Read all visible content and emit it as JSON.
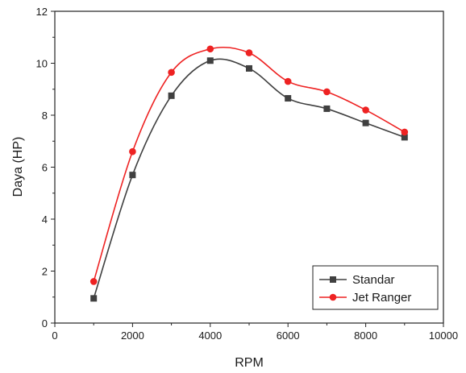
{
  "chart_data": {
    "type": "line",
    "title": "",
    "xlabel": "RPM",
    "ylabel": "Daya (HP)",
    "xlim": [
      0,
      10000
    ],
    "ylim": [
      0,
      12
    ],
    "x_ticks": [
      0,
      2000,
      4000,
      6000,
      8000,
      10000
    ],
    "y_ticks": [
      0,
      2,
      4,
      6,
      8,
      10,
      12
    ],
    "grid": false,
    "legend_position": "bottom-right",
    "x": [
      1000,
      2000,
      3000,
      4000,
      5000,
      6000,
      7000,
      8000,
      9000
    ],
    "series": [
      {
        "name": "Standar",
        "color": "#404040",
        "marker": "square",
        "values": [
          0.95,
          5.7,
          8.75,
          10.1,
          9.8,
          8.65,
          8.25,
          7.7,
          7.15
        ]
      },
      {
        "name": "Jet Ranger",
        "color": "#ee2222",
        "marker": "circle",
        "values": [
          1.6,
          6.6,
          9.65,
          10.55,
          10.4,
          9.3,
          8.9,
          8.2,
          7.35
        ]
      }
    ]
  }
}
